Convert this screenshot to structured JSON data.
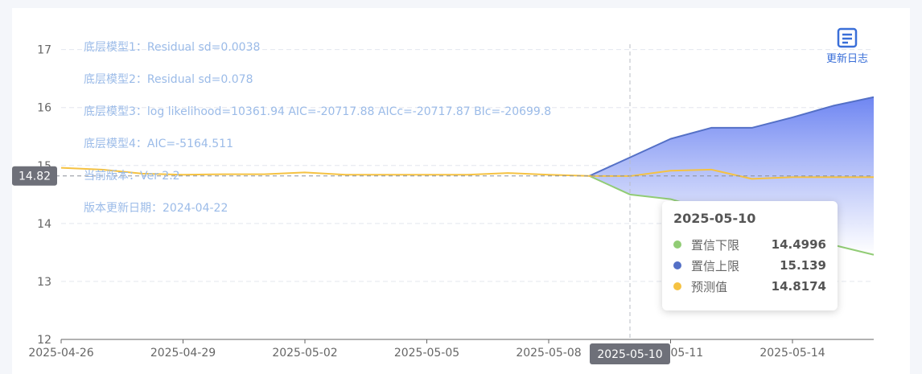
{
  "chart_data": {
    "type": "line",
    "x": [
      "2025-04-26",
      "2025-04-27",
      "2025-04-28",
      "2025-04-29",
      "2025-04-30",
      "2025-05-01",
      "2025-05-02",
      "2025-05-03",
      "2025-05-04",
      "2025-05-05",
      "2025-05-06",
      "2025-05-07",
      "2025-05-08",
      "2025-05-09",
      "2025-05-10",
      "2025-05-11",
      "2025-05-12",
      "2025-05-13",
      "2025-05-14",
      "2025-05-15",
      "2025-05-16"
    ],
    "x_tick_labels": [
      "2025-04-26",
      "2025-04-29",
      "2025-05-02",
      "2025-05-05",
      "2025-05-08",
      "2025-05-11",
      "2025-05-14"
    ],
    "y_tick_labels": [
      "12",
      "13",
      "14",
      "15",
      "16",
      "17"
    ],
    "ylim": [
      12,
      17.3
    ],
    "grid": true,
    "series": [
      {
        "name": "预测值",
        "color": "#f5c242",
        "values": [
          14.96,
          14.93,
          14.86,
          14.84,
          14.85,
          14.85,
          14.88,
          14.84,
          14.84,
          14.84,
          14.84,
          14.87,
          14.84,
          14.82,
          14.8174,
          14.91,
          14.93,
          14.77,
          14.8,
          14.8,
          14.8
        ]
      },
      {
        "name": "置信下限",
        "color": "#91cc75",
        "values": [
          null,
          null,
          null,
          null,
          null,
          null,
          null,
          null,
          null,
          null,
          null,
          null,
          null,
          14.82,
          14.4996,
          14.42,
          14.22,
          13.88,
          13.78,
          13.63,
          13.46
        ]
      },
      {
        "name": "置信上限",
        "color": "#5470c6",
        "values": [
          null,
          null,
          null,
          null,
          null,
          null,
          null,
          null,
          null,
          null,
          null,
          null,
          null,
          14.82,
          15.139,
          15.46,
          15.65,
          15.65,
          15.83,
          16.03,
          16.18
        ]
      }
    ],
    "reference_line": {
      "label": "14.82",
      "value": 14.82
    },
    "crosshair": {
      "x": "2025-05-10"
    },
    "annotations": [
      "底层模型1：Residual sd=0.0038",
      "底层模型2：Residual sd=0.078",
      "底层模型3：log likelihood=10361.94 AIC=-20717.88 AICc=-20717.87 BIc=-20699.8",
      "底层模型4：AIC=-5164.511",
      "当前版本：Ver 2.2",
      "版本更新日期：2024-04-22"
    ]
  },
  "tooltip": {
    "title": "2025-05-10",
    "rows": [
      {
        "name": "置信下限",
        "value": "14.4996",
        "color": "#91cc75"
      },
      {
        "name": "置信上限",
        "value": "15.139",
        "color": "#5470c6"
      },
      {
        "name": "预测值",
        "value": "14.8174",
        "color": "#f5c242"
      }
    ]
  },
  "toolbar": {
    "changelog_label": "更新日志",
    "changelog_icon": "document-icon"
  }
}
